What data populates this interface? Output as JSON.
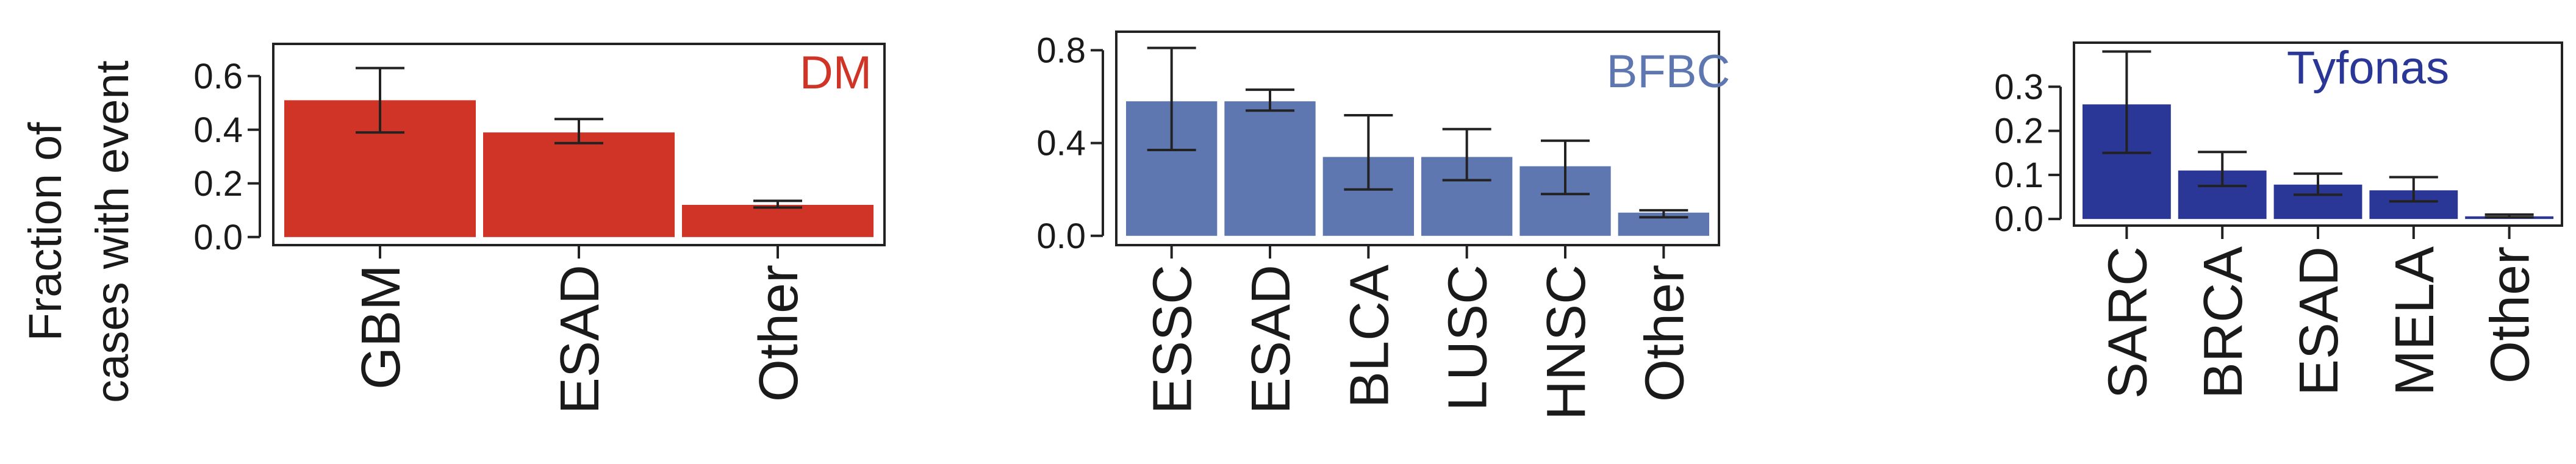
{
  "figure": {
    "ylabel_lines": [
      "Fraction of",
      "cases with event"
    ]
  },
  "chart_data": [
    {
      "type": "bar",
      "title": "DM",
      "color": "#cf3427",
      "categories": [
        "GBM",
        "ESAD",
        "Other"
      ],
      "values": [
        0.51,
        0.39,
        0.12
      ],
      "error_low": [
        0.39,
        0.35,
        0.11
      ],
      "error_high": [
        0.63,
        0.44,
        0.135
      ],
      "ylim": [
        -0.03,
        0.72
      ],
      "yticks": [
        0.0,
        0.2,
        0.4,
        0.6
      ],
      "ytick_labels": [
        "0.0",
        "0.2",
        "0.4",
        "0.6"
      ],
      "legend": "top-right"
    },
    {
      "type": "bar",
      "title": "BFBC",
      "color": "#5f77b0",
      "categories": [
        "ESSC",
        "ESAD",
        "BLCA",
        "LUSC",
        "HNSC",
        "Other"
      ],
      "values": [
        0.58,
        0.58,
        0.34,
        0.34,
        0.3,
        0.1
      ],
      "error_low": [
        0.37,
        0.54,
        0.2,
        0.24,
        0.18,
        0.08
      ],
      "error_high": [
        0.81,
        0.63,
        0.52,
        0.46,
        0.41,
        0.11
      ],
      "ylim": [
        -0.04,
        0.88
      ],
      "yticks": [
        0.0,
        0.4,
        0.8
      ],
      "ytick_labels": [
        "0.0",
        "0.4",
        "0.8"
      ],
      "legend": "top-right"
    },
    {
      "type": "bar",
      "title": "Tyfonas",
      "color": "#2b3796",
      "categories": [
        "SARC",
        "BRCA",
        "ESAD",
        "MELA",
        "Other"
      ],
      "values": [
        0.26,
        0.11,
        0.078,
        0.065,
        0.006
      ],
      "error_low": [
        0.15,
        0.075,
        0.055,
        0.04,
        0.004
      ],
      "error_high": [
        0.38,
        0.152,
        0.103,
        0.095,
        0.01
      ],
      "ylim": [
        -0.015,
        0.4
      ],
      "yticks": [
        0.0,
        0.1,
        0.2,
        0.3
      ],
      "ytick_labels": [
        "0.0",
        "0.1",
        "0.2",
        "0.3"
      ],
      "legend": "top-right"
    }
  ]
}
